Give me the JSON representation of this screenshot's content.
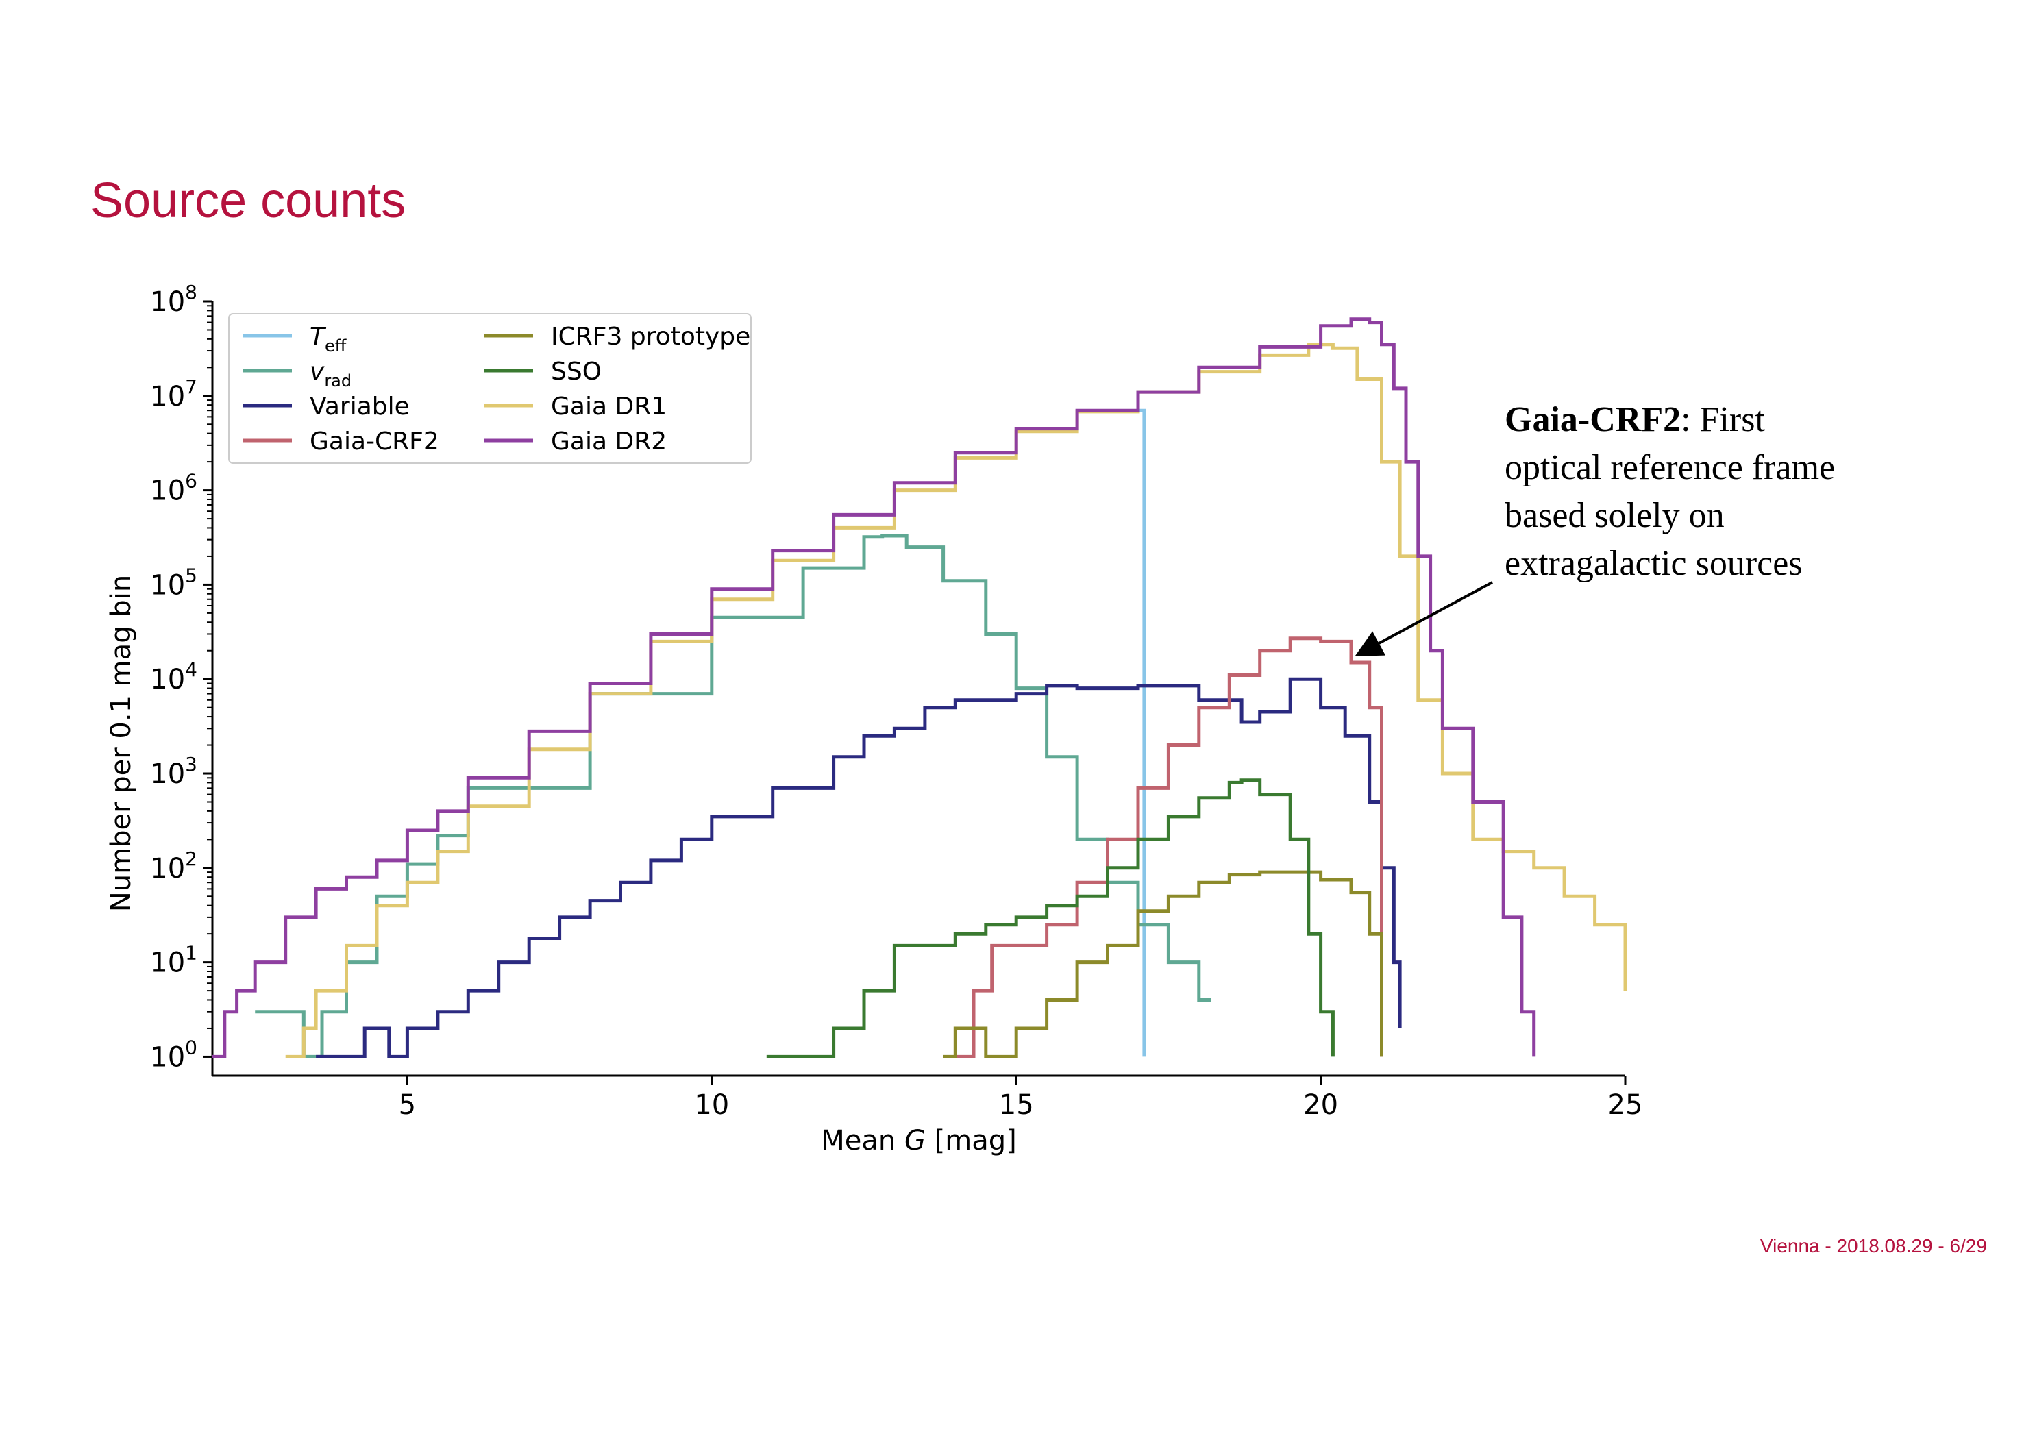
{
  "slide": {
    "title": "Source counts",
    "footer": "Vienna - 2018.08.29 - 6/29"
  },
  "annotation": {
    "bold": "Gaia-CRF2",
    "rest": ": First",
    "lines": [
      "optical reference frame",
      "based solely on",
      "extragalactic sources"
    ],
    "arrow_target": {
      "x": 20.6,
      "y": 18000
    }
  },
  "chart_data": {
    "type": "line",
    "step": true,
    "log_y": true,
    "xlim": [
      1.8,
      25
    ],
    "ylim_exp": [
      -0.2,
      8
    ],
    "x_ticks": [
      5,
      10,
      15,
      20,
      25
    ],
    "y_tick_exps": [
      0,
      1,
      2,
      3,
      4,
      5,
      6,
      7,
      8
    ],
    "xlabel_prefix": "Mean ",
    "xlabel_italic": "G",
    "xlabel_suffix": " [mag]",
    "ylabel": "Number per 0.1 mag bin",
    "legend_position": "top-left",
    "series": [
      {
        "name": "T",
        "sub": "eff",
        "italic": true,
        "color": "#88c5e8",
        "points": [
          [
            17.0,
            7000000
          ],
          [
            17.1,
            1
          ],
          [
            17.1,
            1
          ]
        ]
      },
      {
        "name": "v",
        "sub": "rad",
        "italic": true,
        "color": "#5fa893",
        "points": [
          [
            2.5,
            3
          ],
          [
            3.0,
            3
          ],
          [
            3.3,
            1
          ],
          [
            3.6,
            3
          ],
          [
            4.0,
            10
          ],
          [
            4.5,
            50
          ],
          [
            5.0,
            110
          ],
          [
            5.5,
            220
          ],
          [
            6.0,
            700
          ],
          [
            8.0,
            7000
          ],
          [
            10.0,
            45000
          ],
          [
            11.5,
            150000
          ],
          [
            12.5,
            320000
          ],
          [
            12.8,
            330000
          ],
          [
            13.2,
            250000
          ],
          [
            13.8,
            110000
          ],
          [
            14.5,
            30000
          ],
          [
            15.0,
            8000
          ],
          [
            15.5,
            1500
          ],
          [
            16.0,
            200
          ],
          [
            16.5,
            70
          ],
          [
            17.0,
            25
          ],
          [
            17.5,
            10
          ],
          [
            18.0,
            4
          ],
          [
            18.2,
            4
          ]
        ]
      },
      {
        "name": "Variable",
        "color": "#2b2a80",
        "points": [
          [
            3.5,
            1
          ],
          [
            4.0,
            1
          ],
          [
            4.3,
            2
          ],
          [
            4.7,
            1
          ],
          [
            5.0,
            2
          ],
          [
            5.5,
            3
          ],
          [
            6.0,
            5
          ],
          [
            6.5,
            10
          ],
          [
            7.0,
            18
          ],
          [
            7.5,
            30
          ],
          [
            8.0,
            45
          ],
          [
            8.5,
            70
          ],
          [
            9.0,
            120
          ],
          [
            9.5,
            200
          ],
          [
            10.0,
            350
          ],
          [
            11.0,
            700
          ],
          [
            12.0,
            1500
          ],
          [
            12.5,
            2500
          ],
          [
            13.0,
            3000
          ],
          [
            13.5,
            5000
          ],
          [
            14.0,
            6000
          ],
          [
            15.0,
            7000
          ],
          [
            15.5,
            8500
          ],
          [
            16.0,
            8000
          ],
          [
            17.0,
            8500
          ],
          [
            18.0,
            6000
          ],
          [
            18.7,
            3500
          ],
          [
            19.0,
            4500
          ],
          [
            19.5,
            10000
          ],
          [
            20.0,
            5000
          ],
          [
            20.4,
            2500
          ],
          [
            20.8,
            500
          ],
          [
            21.0,
            100
          ],
          [
            21.2,
            10
          ],
          [
            21.3,
            2
          ]
        ]
      },
      {
        "name": "Gaia-CRF2",
        "color": "#c0636e",
        "points": [
          [
            14.0,
            1
          ],
          [
            14.3,
            5
          ],
          [
            14.6,
            15
          ],
          [
            15.0,
            15
          ],
          [
            15.5,
            25
          ],
          [
            16.0,
            70
          ],
          [
            16.5,
            200
          ],
          [
            17.0,
            700
          ],
          [
            17.5,
            2000
          ],
          [
            18.0,
            5000
          ],
          [
            18.5,
            11000
          ],
          [
            19.0,
            20000
          ],
          [
            19.5,
            27000
          ],
          [
            20.0,
            25000
          ],
          [
            20.5,
            15000
          ],
          [
            20.8,
            5000
          ],
          [
            21.0,
            500
          ],
          [
            21.0,
            1
          ]
        ]
      },
      {
        "name": "ICRF3 prototype",
        "color": "#8c8a2a",
        "points": [
          [
            13.8,
            1
          ],
          [
            14.0,
            2
          ],
          [
            14.5,
            1
          ],
          [
            15.0,
            2
          ],
          [
            15.5,
            4
          ],
          [
            16.0,
            10
          ],
          [
            16.5,
            15
          ],
          [
            17.0,
            35
          ],
          [
            17.5,
            50
          ],
          [
            18.0,
            70
          ],
          [
            18.5,
            85
          ],
          [
            19.0,
            90
          ],
          [
            19.5,
            90
          ],
          [
            20.0,
            75
          ],
          [
            20.5,
            55
          ],
          [
            20.8,
            20
          ],
          [
            21.0,
            1
          ]
        ]
      },
      {
        "name": "SSO",
        "color": "#3a7a30",
        "points": [
          [
            10.9,
            1
          ],
          [
            11.5,
            1
          ],
          [
            12.0,
            2
          ],
          [
            12.5,
            5
          ],
          [
            13.0,
            15
          ],
          [
            13.5,
            15
          ],
          [
            14.0,
            20
          ],
          [
            14.5,
            25
          ],
          [
            15.0,
            30
          ],
          [
            15.5,
            40
          ],
          [
            16.0,
            50
          ],
          [
            16.5,
            100
          ],
          [
            17.0,
            200
          ],
          [
            17.5,
            350
          ],
          [
            18.0,
            550
          ],
          [
            18.5,
            800
          ],
          [
            18.7,
            850
          ],
          [
            19.0,
            600
          ],
          [
            19.5,
            200
          ],
          [
            19.8,
            20
          ],
          [
            20.0,
            3
          ],
          [
            20.2,
            1
          ]
        ]
      },
      {
        "name": "Gaia DR1",
        "color": "#e0c870",
        "points": [
          [
            3.0,
            1
          ],
          [
            3.3,
            2
          ],
          [
            3.5,
            5
          ],
          [
            4.0,
            15
          ],
          [
            4.5,
            40
          ],
          [
            5.0,
            70
          ],
          [
            5.5,
            150
          ],
          [
            6.0,
            450
          ],
          [
            7.0,
            1800
          ],
          [
            8.0,
            7000
          ],
          [
            9.0,
            25000
          ],
          [
            10.0,
            70000
          ],
          [
            11.0,
            180000
          ],
          [
            12.0,
            400000
          ],
          [
            13.0,
            1000000
          ],
          [
            14.0,
            2200000
          ],
          [
            15.0,
            4200000
          ],
          [
            16.0,
            6800000
          ],
          [
            17.0,
            11000000
          ],
          [
            18.0,
            18000000
          ],
          [
            19.0,
            27000000
          ],
          [
            19.8,
            35000000
          ],
          [
            20.2,
            32000000
          ],
          [
            20.6,
            15000000
          ],
          [
            21.0,
            2000000
          ],
          [
            21.3,
            200000
          ],
          [
            21.6,
            6000
          ],
          [
            22.0,
            1000
          ],
          [
            22.5,
            200
          ],
          [
            23.0,
            150
          ],
          [
            23.5,
            100
          ],
          [
            24.0,
            50
          ],
          [
            24.5,
            25
          ],
          [
            25.0,
            5
          ]
        ]
      },
      {
        "name": "Gaia DR2",
        "color": "#8e3fa0",
        "points": [
          [
            1.8,
            1
          ],
          [
            2.0,
            3
          ],
          [
            2.2,
            5
          ],
          [
            2.5,
            10
          ],
          [
            3.0,
            30
          ],
          [
            3.5,
            60
          ],
          [
            4.0,
            80
          ],
          [
            4.5,
            120
          ],
          [
            5.0,
            250
          ],
          [
            5.5,
            400
          ],
          [
            6.0,
            900
          ],
          [
            7.0,
            2800
          ],
          [
            8.0,
            9000
          ],
          [
            9.0,
            30000
          ],
          [
            10.0,
            90000
          ],
          [
            11.0,
            230000
          ],
          [
            12.0,
            550000
          ],
          [
            13.0,
            1200000
          ],
          [
            14.0,
            2500000
          ],
          [
            15.0,
            4500000
          ],
          [
            16.0,
            7000000
          ],
          [
            17.0,
            11000000
          ],
          [
            18.0,
            20000000
          ],
          [
            19.0,
            33000000
          ],
          [
            20.0,
            55000000
          ],
          [
            20.5,
            65000000
          ],
          [
            20.8,
            60000000
          ],
          [
            21.0,
            35000000
          ],
          [
            21.2,
            12000000
          ],
          [
            21.4,
            2000000
          ],
          [
            21.6,
            200000
          ],
          [
            21.8,
            20000
          ],
          [
            22.0,
            3000
          ],
          [
            22.5,
            500
          ],
          [
            23.0,
            30
          ],
          [
            23.3,
            3
          ],
          [
            23.5,
            1
          ]
        ]
      }
    ]
  }
}
